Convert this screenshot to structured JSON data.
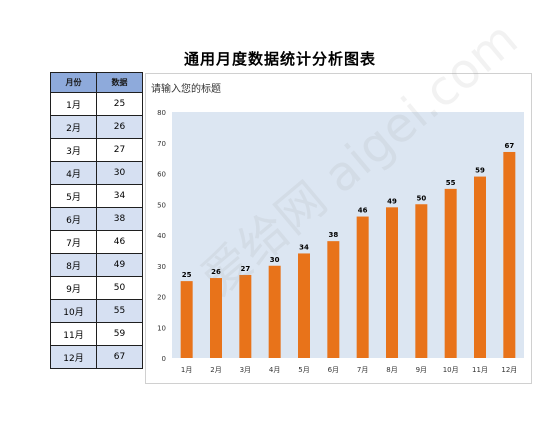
{
  "page": {
    "title": "通用月度数据统计分析图表"
  },
  "table": {
    "headers": [
      "月份",
      "数据"
    ],
    "rows": [
      [
        "1月",
        "25"
      ],
      [
        "2月",
        "26"
      ],
      [
        "3月",
        "27"
      ],
      [
        "4月",
        "30"
      ],
      [
        "5月",
        "34"
      ],
      [
        "6月",
        "38"
      ],
      [
        "7月",
        "46"
      ],
      [
        "8月",
        "49"
      ],
      [
        "9月",
        "50"
      ],
      [
        "10月",
        "55"
      ],
      [
        "11月",
        "59"
      ],
      [
        "12月",
        "67"
      ]
    ]
  },
  "chart_data": {
    "type": "bar",
    "title": "请输入您的标题",
    "categories": [
      "1月",
      "2月",
      "3月",
      "4月",
      "5月",
      "6月",
      "7月",
      "8月",
      "9月",
      "10月",
      "11月",
      "12月"
    ],
    "values": [
      25,
      26,
      27,
      30,
      34,
      38,
      46,
      49,
      50,
      55,
      59,
      67
    ],
    "ylim": [
      0,
      80
    ],
    "yticks": [
      0,
      10,
      20,
      30,
      40,
      50,
      60,
      70,
      80
    ],
    "xlabel": "",
    "ylabel": "",
    "grid": false,
    "legend": "none",
    "bar_color": "#e8731a",
    "plot_bg": "#dce6f2"
  },
  "watermark": {
    "text": "爱给网 aigei.com"
  }
}
